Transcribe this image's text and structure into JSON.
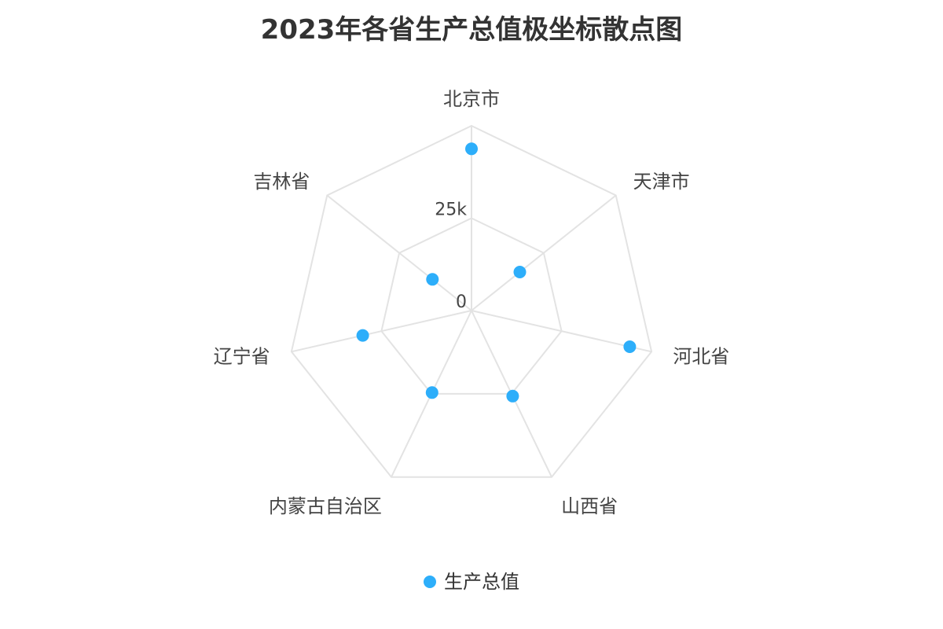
{
  "chart_data": {
    "type": "scatter",
    "coordinate_system": "polar",
    "title": "2023年各省生产总值极坐标散点图",
    "categories": [
      "北京市",
      "天津市",
      "河北省",
      "山西省",
      "内蒙古自治区",
      "辽宁省",
      "吉林省"
    ],
    "series": [
      {
        "name": "生产总值",
        "values": [
          43761,
          16737,
          43944,
          25698,
          24627,
          30209,
          13531
        ],
        "color": "#2daefa"
      }
    ],
    "radial_ticks": [
      "0",
      "25k"
    ],
    "radial_range": [
      0,
      50000
    ],
    "grid": true,
    "legend_position": "bottom"
  }
}
